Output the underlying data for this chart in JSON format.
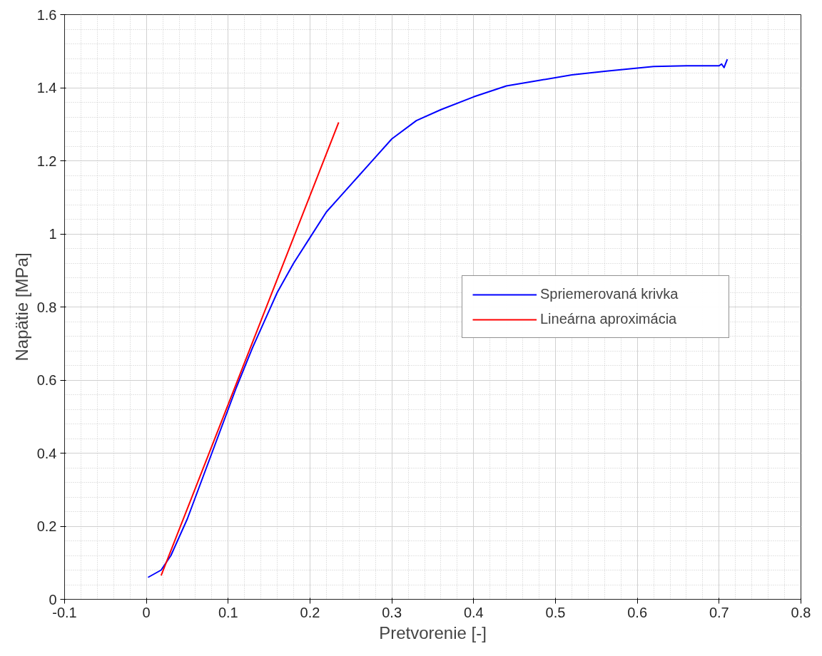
{
  "chart_data": {
    "type": "line",
    "xlabel": "Pretvorenie [-]",
    "ylabel": "Napätie [MPa]",
    "xlim": [
      -0.1,
      0.8
    ],
    "xticks": [
      -0.1,
      0,
      0.1,
      0.2,
      0.3,
      0.4,
      0.5,
      0.6,
      0.7,
      0.8
    ],
    "ylim": [
      0,
      1.6
    ],
    "yticks": [
      0,
      0.2,
      0.4,
      0.6,
      0.8,
      1,
      1.2,
      1.4,
      1.6
    ],
    "grid": true,
    "legend": "right",
    "line_style": "solid",
    "marker": "none",
    "series": [
      {
        "name": "Spriemerovaná krivka",
        "color": "#0000ff",
        "x": [
          0.002,
          0.018,
          0.03,
          0.05,
          0.07,
          0.09,
          0.11,
          0.13,
          0.15,
          0.16,
          0.18,
          0.2,
          0.22,
          0.24,
          0.26,
          0.28,
          0.3,
          0.33,
          0.36,
          0.4,
          0.44,
          0.48,
          0.52,
          0.56,
          0.62,
          0.66,
          0.7,
          0.703,
          0.706,
          0.71
        ],
        "values": [
          0.06,
          0.08,
          0.12,
          0.22,
          0.34,
          0.46,
          0.58,
          0.69,
          0.79,
          0.84,
          0.92,
          0.99,
          1.06,
          1.11,
          1.16,
          1.21,
          1.26,
          1.31,
          1.34,
          1.375,
          1.405,
          1.42,
          1.435,
          1.445,
          1.458,
          1.46,
          1.46,
          1.465,
          1.455,
          1.478
        ]
      },
      {
        "name": "Lineárna aproximácia",
        "color": "#ff0000",
        "x": [
          0.018,
          0.235
        ],
        "values": [
          0.065,
          1.305
        ]
      }
    ]
  }
}
